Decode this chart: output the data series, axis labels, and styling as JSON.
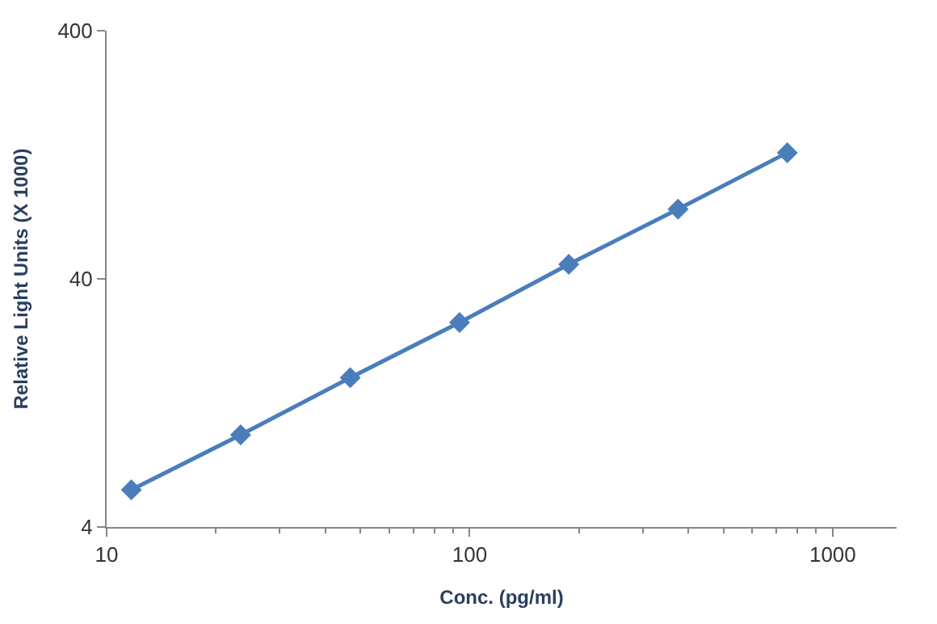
{
  "chart_data": {
    "type": "line",
    "xlabel": "Conc. (pg/ml)",
    "ylabel": "Relative Light Units (X 1000)",
    "x": [
      11.7,
      23.4,
      46.9,
      93.8,
      187.5,
      375,
      750
    ],
    "series": [
      {
        "color": "#4a7ebb",
        "values": [
          5.65,
          9.4,
          16,
          26.7,
          45.8,
          76.4,
          129
        ]
      }
    ],
    "log": "xy",
    "xlim": [
      10,
      1500
    ],
    "ylim": [
      4,
      400
    ],
    "xticks": [
      10,
      100,
      1000
    ],
    "yticks": [
      4,
      40,
      400
    ],
    "legend": false,
    "marker": "diamond",
    "line_style": "solid"
  }
}
